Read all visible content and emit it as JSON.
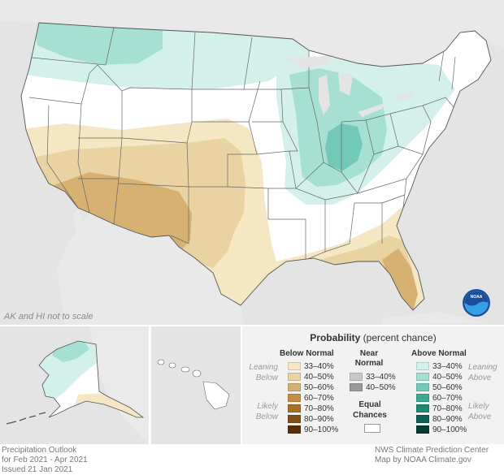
{
  "map_note": "AK and HI not to scale",
  "agency_logo": "NOAA",
  "legend": {
    "title_bold": "Probability",
    "title_rest": " (percent chance)",
    "below_header": "Below Normal",
    "near_header_1": "Near",
    "near_header_2": "Normal",
    "above_header": "Above Normal",
    "leaning_below": [
      "Leaning",
      "Below"
    ],
    "likely_below": [
      "Likely",
      "Below"
    ],
    "leaning_above": [
      "Leaning",
      "Above"
    ],
    "likely_above": [
      "Likely",
      "Above"
    ],
    "equal_chances": [
      "Equal",
      "Chances"
    ],
    "below_items": [
      {
        "label": "33–40%",
        "color": "#f5e6c4"
      },
      {
        "label": "40–50%",
        "color": "#ead3a3"
      },
      {
        "label": "50–60%",
        "color": "#d6b171"
      },
      {
        "label": "60–70%",
        "color": "#c48f45"
      },
      {
        "label": "70–80%",
        "color": "#a86e26"
      },
      {
        "label": "80–90%",
        "color": "#7f4e15"
      },
      {
        "label": "90–100%",
        "color": "#55300a"
      }
    ],
    "near_items": [
      {
        "label": "33–40%",
        "color": "#c8c8c8"
      },
      {
        "label": "40–50%",
        "color": "#9a9a9a"
      }
    ],
    "above_items": [
      {
        "label": "33–40%",
        "color": "#d4f0ea"
      },
      {
        "label": "40–50%",
        "color": "#a6e0d3"
      },
      {
        "label": "50–60%",
        "color": "#72c9b7"
      },
      {
        "label": "60–70%",
        "color": "#40a893"
      },
      {
        "label": "70–80%",
        "color": "#1f8673"
      },
      {
        "label": "80–90%",
        "color": "#0e5f51"
      },
      {
        "label": "90–100%",
        "color": "#053a31"
      }
    ]
  },
  "footer": {
    "left_1": "Precipitation Outlook",
    "left_2": "for Feb 2021 - Apr 2021",
    "left_3": "Issued 21 Jan 2021",
    "right_1": "NWS Climate Prediction Center",
    "right_2": "Map by NOAA Climate.gov"
  }
}
